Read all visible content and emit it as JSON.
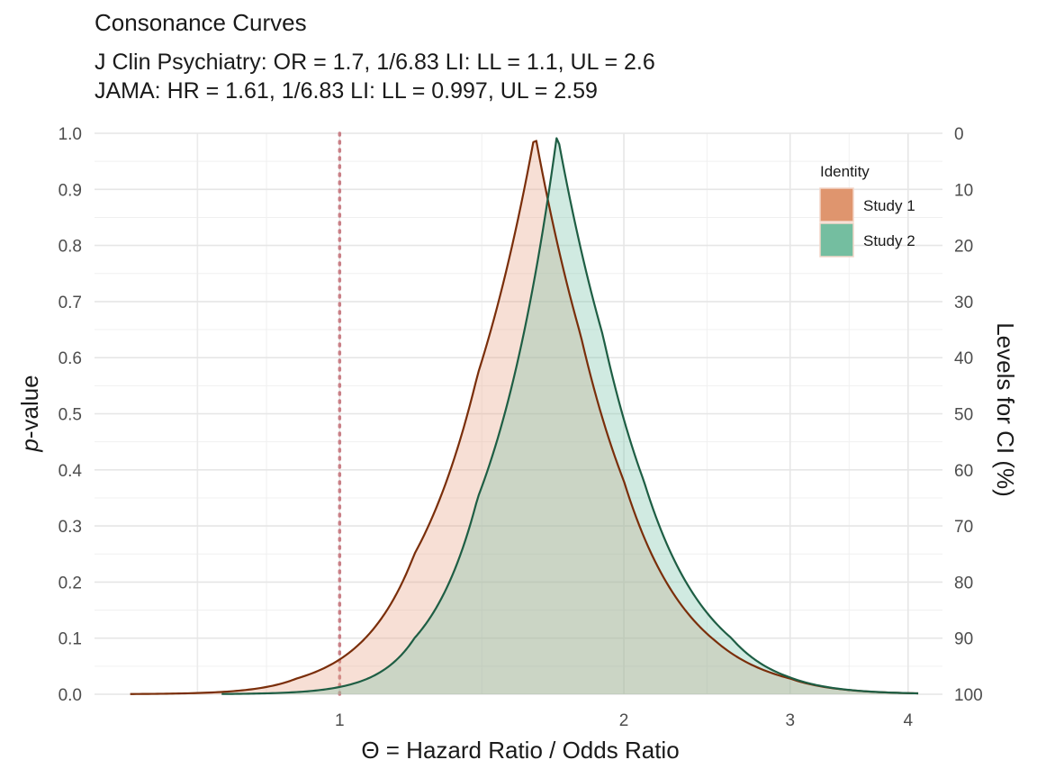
{
  "chart_data": {
    "type": "area",
    "title": "Consonance Curves",
    "subtitle_lines": [
      "J Clin Psychiatry: OR = 1.7, 1/6.83 LI: LL = 1.1, UL = 2.6",
      "JAMA: HR = 1.61, 1/6.83 LI: LL = 0.997, UL = 2.59"
    ],
    "xlabel": "Θ = Hazard Ratio / Odds Ratio",
    "ylabel_italic": "p",
    "ylabel_rest": "-value",
    "y2label": "Levels for CI (%)",
    "x_scale": "log",
    "xlim": [
      0.55,
      4.35
    ],
    "ylim": [
      0,
      1
    ],
    "x_ticks": [
      1,
      2,
      3,
      4
    ],
    "y_ticks": [
      0.0,
      0.1,
      0.2,
      0.3,
      0.4,
      0.5,
      0.6,
      0.7,
      0.8,
      0.9,
      1.0
    ],
    "y_tick_labels": [
      "0.0",
      "0.1",
      "0.2",
      "0.3",
      "0.4",
      "0.5",
      "0.6",
      "0.7",
      "0.8",
      "0.9",
      "1.0"
    ],
    "y2_tick_labels": [
      "100",
      "90",
      "80",
      "70",
      "60",
      "50",
      "40",
      "30",
      "20",
      "10",
      "0"
    ],
    "reference_line": {
      "x": 1,
      "style": "dotted",
      "color": "#c97f86"
    },
    "grid": true,
    "legend": {
      "title": "Identity",
      "position": "top-right"
    },
    "series": [
      {
        "name": "Study 1",
        "estimate": 1.61,
        "x_range": [
          0.6,
          4.1
        ],
        "peak": 1.0,
        "line_color": "#7a2e0a",
        "fill_color": "#e8a487",
        "key_color": "#df956e",
        "points": [
          [
            0.7,
            0.002
          ],
          [
            0.9,
            0.028
          ],
          [
            1.0,
            0.062
          ],
          [
            1.2,
            0.25
          ],
          [
            1.4,
            0.57
          ],
          [
            1.61,
            1.0
          ],
          [
            1.8,
            0.64
          ],
          [
            2.0,
            0.38
          ],
          [
            2.5,
            0.095
          ],
          [
            3.0,
            0.028
          ],
          [
            4.0,
            0.002
          ]
        ]
      },
      {
        "name": "Study 2",
        "estimate": 1.7,
        "x_range": [
          0.75,
          4.1
        ],
        "peak": 1.0,
        "line_color": "#1e5e44",
        "fill_color": "#79c2a8",
        "key_color": "#74bea0",
        "points": [
          [
            0.8,
            0.001
          ],
          [
            1.0,
            0.013
          ],
          [
            1.2,
            0.1
          ],
          [
            1.4,
            0.35
          ],
          [
            1.7,
            1.0
          ],
          [
            1.9,
            0.64
          ],
          [
            2.1,
            0.38
          ],
          [
            2.6,
            0.1
          ],
          [
            3.0,
            0.03
          ],
          [
            4.0,
            0.002
          ]
        ]
      }
    ]
  }
}
